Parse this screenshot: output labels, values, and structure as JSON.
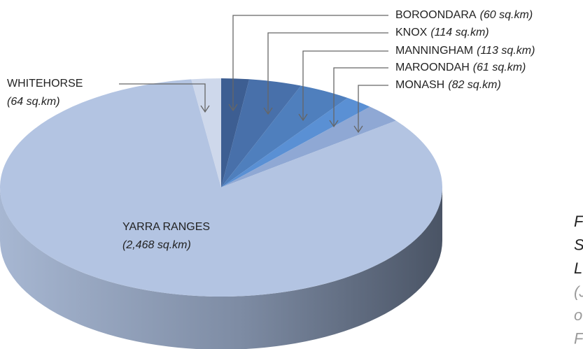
{
  "chart_data": {
    "type": "pie3d",
    "categories": [
      "BOROONDARA",
      "KNOX",
      "MANNINGHAM",
      "MAROONDAH",
      "MONASH",
      "YARRA RANGES",
      "WHITEHORSE"
    ],
    "values": [
      60,
      114,
      113,
      61,
      82,
      2468,
      64
    ],
    "value_labels": [
      "(60 sq.km)",
      "(114 sq.km)",
      "(113 sq.km)",
      "(61 sq.km)",
      "(82 sq.km)",
      "(2,468 sq.km)",
      "(64 sq.km)"
    ],
    "colors": [
      "#3d5e92",
      "#4870aa",
      "#4f7fbd",
      "#5a90d4",
      "#8fa8d4",
      "#b3c4e2",
      "#ced8eb"
    ],
    "annotations": [
      "F",
      "S",
      "L",
      "(J",
      "o",
      "F"
    ]
  }
}
